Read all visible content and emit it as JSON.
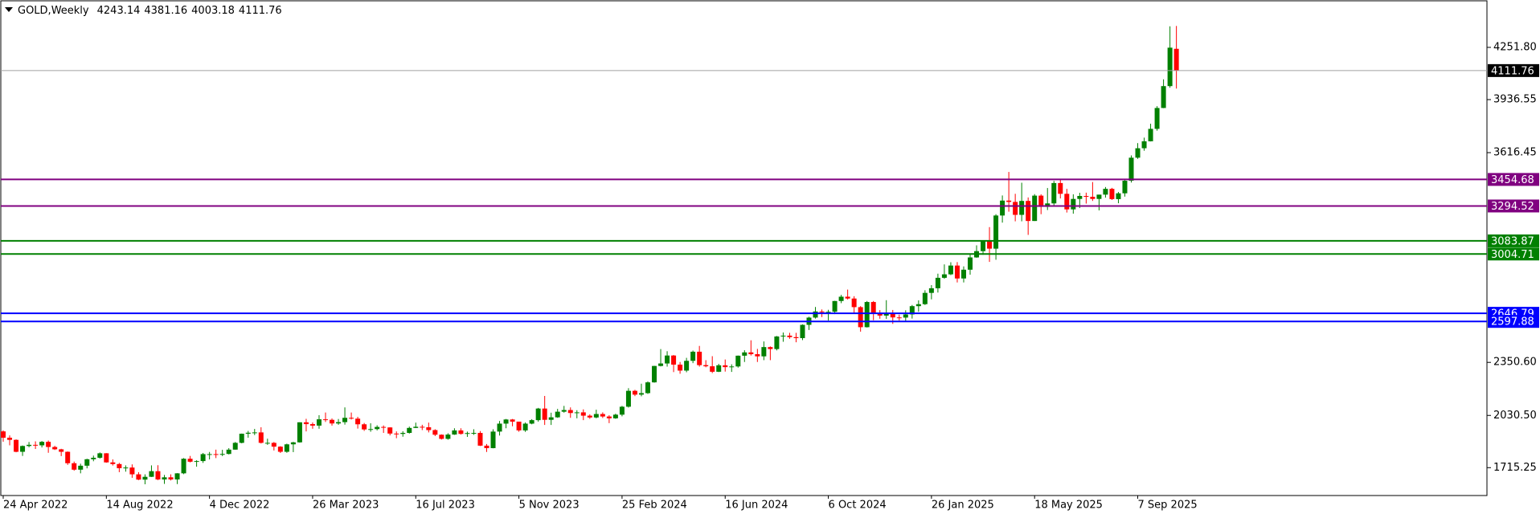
{
  "chart_data": {
    "type": "candlestick",
    "title": "GOLD,Weekly",
    "categories": [
      "24 Apr 2022",
      null,
      null,
      null,
      null,
      null,
      null,
      null,
      null,
      null,
      null,
      null,
      null,
      null,
      null,
      null,
      "14 Aug 2022",
      null,
      null,
      null,
      null,
      null,
      null,
      null,
      null,
      null,
      null,
      null,
      null,
      null,
      null,
      null,
      "4 Dec 2022",
      null,
      null,
      null,
      null,
      null,
      null,
      null,
      null,
      null,
      null,
      null,
      null,
      null,
      null,
      null,
      "26 Mar 2023",
      null,
      null,
      null,
      null,
      null,
      null,
      null,
      null,
      null,
      null,
      null,
      null,
      null,
      null,
      null,
      "16 Jul 2023",
      null,
      null,
      null,
      null,
      null,
      null,
      null,
      null,
      null,
      null,
      null,
      null,
      null,
      null,
      null,
      "5 Nov 2023",
      null,
      null,
      null,
      null,
      null,
      null,
      null,
      null,
      null,
      null,
      null,
      null,
      null,
      null,
      null,
      "25 Feb 2024",
      null,
      null,
      null,
      null,
      null,
      null,
      null,
      null,
      null,
      null,
      null,
      null,
      null,
      null,
      null,
      "16 Jun 2024",
      null,
      null,
      null,
      null,
      null,
      null,
      null,
      null,
      null,
      null,
      null,
      null,
      null,
      null,
      null,
      "6 Oct 2024",
      null,
      null,
      null,
      null,
      null,
      null,
      null,
      null,
      null,
      null,
      null,
      null,
      null,
      null,
      null,
      "26 Jan 2025",
      null,
      null,
      null,
      null,
      null,
      null,
      null,
      null,
      null,
      null,
      null,
      null,
      null,
      null,
      null,
      "18 May 2025",
      null,
      null,
      null,
      null,
      null,
      null,
      null,
      null,
      null,
      null,
      null,
      null,
      null,
      null,
      null,
      "7 Sep 2025",
      null,
      null,
      null,
      null,
      null,
      null
    ],
    "open": [
      1934,
      1896,
      1883,
      1811,
      1846,
      1853,
      1850,
      1871,
      1840,
      1826,
      1811,
      1742,
      1703,
      1727,
      1766,
      1775,
      1802,
      1747,
      1737,
      1712,
      1716,
      1675,
      1643,
      1660,
      1694,
      1644,
      1657,
      1644,
      1681,
      1769,
      1751,
      1755,
      1797,
      1797,
      1793,
      1798,
      1824,
      1865,
      1920,
      1926,
      1928,
      1865,
      1865,
      1842,
      1811,
      1856,
      1868,
      1989,
      1978,
      1969,
      2007,
      2004,
      1982,
      1990,
      2016,
      2011,
      1977,
      1946,
      1948,
      1961,
      1958,
      1921,
      1919,
      1925,
      1955,
      1962,
      1959,
      1942,
      1914,
      1889,
      1915,
      1940,
      1919,
      1924,
      1925,
      1848,
      1833,
      1933,
      1981,
      2006,
      1993,
      1940,
      1981,
      2002,
      2072,
      2004,
      2019,
      2053,
      2063,
      2045,
      2049,
      2029,
      2018,
      2039,
      2024,
      2013,
      2035,
      2083,
      2179,
      2156,
      2165,
      2230,
      2329,
      2344,
      2392,
      2337,
      2301,
      2360,
      2415,
      2334,
      2327,
      2294,
      2333,
      2322,
      2326,
      2391,
      2411,
      2400,
      2387,
      2443,
      2431,
      2507,
      2512,
      2503,
      2497,
      2577,
      2621,
      2658,
      2653,
      2656,
      2721,
      2747,
      2736,
      2684,
      2563,
      2715,
      2643,
      2633,
      2648,
      2622,
      2621,
      2640,
      2690,
      2702,
      2770,
      2798,
      2861,
      2882,
      2935,
      2857,
      2910,
      2984,
      3022,
      3084,
      3037,
      3237,
      3327,
      3319,
      3241,
      3325,
      3204,
      3357,
      3289,
      3310,
      3433,
      3368,
      3274,
      3337,
      3355,
      3350,
      3337,
      3363,
      3398,
      3336,
      3371,
      3447,
      3586,
      3643,
      3685,
      3760,
      3886,
      4018,
      4243.14
    ],
    "high": [
      1940,
      1910,
      1886,
      1849,
      1870,
      1874,
      1876,
      1879,
      1847,
      1829,
      1813,
      1752,
      1739,
      1769,
      1788,
      1807,
      1803,
      1765,
      1744,
      1729,
      1735,
      1688,
      1675,
      1729,
      1730,
      1671,
      1675,
      1682,
      1773,
      1786,
      1760,
      1804,
      1810,
      1824,
      1823,
      1833,
      1870,
      1921,
      1937,
      1949,
      1959,
      1890,
      1870,
      1845,
      1860,
      1871,
      1989,
      2010,
      1988,
      2032,
      2048,
      2012,
      2009,
      2079,
      2048,
      2022,
      1985,
      1983,
      1971,
      1970,
      1959,
      1934,
      1935,
      1963,
      1987,
      1974,
      1987,
      1947,
      1916,
      1923,
      1953,
      1953,
      1933,
      1947,
      1936,
      1858,
      1947,
      1997,
      2009,
      2009,
      1993,
      1988,
      2008,
      2076,
      2148,
      2047,
      2070,
      2088,
      2079,
      2062,
      2067,
      2037,
      2065,
      2049,
      2032,
      2041,
      2088,
      2195,
      2185,
      2222,
      2236,
      2330,
      2431,
      2418,
      2395,
      2353,
      2378,
      2422,
      2450,
      2364,
      2388,
      2342,
      2368,
      2339,
      2392,
      2424,
      2484,
      2432,
      2477,
      2447,
      2510,
      2531,
      2529,
      2529,
      2580,
      2626,
      2685,
      2670,
      2668,
      2722,
      2758,
      2790,
      2750,
      2690,
      2721,
      2721,
      2666,
      2726,
      2667,
      2639,
      2665,
      2697,
      2725,
      2786,
      2817,
      2886,
      2942,
      2955,
      2956,
      2930,
      3005,
      3057,
      3086,
      3167,
      3245,
      3358,
      3500,
      3368,
      3435,
      3346,
      3366,
      3365,
      3403,
      3446,
      3452,
      3398,
      3365,
      3374,
      3375,
      3439,
      3363,
      3409,
      3404,
      3379,
      3453,
      3600,
      3674,
      3707,
      3791,
      3897,
      4059,
      4379,
      4381.16
    ],
    "low": [
      1872,
      1850,
      1808,
      1786,
      1838,
      1828,
      1837,
      1805,
      1822,
      1785,
      1732,
      1697,
      1681,
      1711,
      1754,
      1770,
      1745,
      1728,
      1688,
      1691,
      1654,
      1640,
      1615,
      1659,
      1640,
      1617,
      1638,
      1616,
      1676,
      1747,
      1721,
      1744,
      1765,
      1773,
      1785,
      1795,
      1824,
      1862,
      1896,
      1912,
      1861,
      1853,
      1819,
      1804,
      1805,
      1809,
      1866,
      1934,
      1950,
      1950,
      1991,
      1969,
      1974,
      1975,
      2006,
      1951,
      1937,
      1932,
      1940,
      1925,
      1910,
      1893,
      1902,
      1921,
      1954,
      1942,
      1928,
      1906,
      1885,
      1884,
      1913,
      1915,
      1901,
      1913,
      1846,
      1810,
      1832,
      1909,
      1953,
      1965,
      1932,
      1931,
      1977,
      1993,
      1973,
      1973,
      2016,
      2047,
      2016,
      2013,
      2002,
      2010,
      2013,
      2015,
      1984,
      2010,
      2025,
      2078,
      2147,
      2146,
      2160,
      2228,
      2326,
      2325,
      2292,
      2282,
      2291,
      2346,
      2325,
      2321,
      2286,
      2292,
      2295,
      2293,
      2319,
      2353,
      2392,
      2353,
      2364,
      2364,
      2423,
      2475,
      2493,
      2472,
      2485,
      2546,
      2615,
      2624,
      2603,
      2642,
      2708,
      2730,
      2643,
      2536,
      2561,
      2605,
      2614,
      2613,
      2583,
      2603,
      2597,
      2615,
      2656,
      2697,
      2731,
      2772,
      2855,
      2877,
      2833,
      2833,
      2880,
      2982,
      3000,
      2957,
      2970,
      3194,
      3260,
      3202,
      3202,
      3120,
      3204,
      3245,
      3270,
      3293,
      3340,
      3255,
      3248,
      3282,
      3309,
      3325,
      3268,
      3345,
      3331,
      3311,
      3351,
      3436,
      3579,
      3628,
      3684,
      3749,
      3885,
      4008,
      4003.18
    ],
    "close": [
      1896,
      1883,
      1811,
      1846,
      1853,
      1850,
      1871,
      1840,
      1826,
      1811,
      1742,
      1703,
      1727,
      1766,
      1775,
      1802,
      1747,
      1737,
      1712,
      1716,
      1675,
      1643,
      1660,
      1694,
      1644,
      1657,
      1644,
      1681,
      1769,
      1751,
      1755,
      1797,
      1797,
      1793,
      1798,
      1824,
      1865,
      1920,
      1926,
      1928,
      1865,
      1865,
      1842,
      1811,
      1856,
      1868,
      1989,
      1978,
      1969,
      2007,
      2004,
      1982,
      1990,
      2016,
      2011,
      1977,
      1946,
      1948,
      1961,
      1958,
      1921,
      1919,
      1925,
      1955,
      1962,
      1959,
      1942,
      1914,
      1889,
      1915,
      1940,
      1919,
      1924,
      1925,
      1848,
      1833,
      1933,
      1981,
      2006,
      1993,
      1940,
      1981,
      2002,
      2072,
      2004,
      2019,
      2053,
      2063,
      2045,
      2049,
      2029,
      2018,
      2039,
      2024,
      2013,
      2035,
      2083,
      2179,
      2156,
      2165,
      2230,
      2329,
      2344,
      2392,
      2337,
      2301,
      2360,
      2415,
      2334,
      2327,
      2294,
      2333,
      2322,
      2326,
      2391,
      2411,
      2400,
      2387,
      2443,
      2431,
      2507,
      2512,
      2503,
      2497,
      2577,
      2621,
      2658,
      2653,
      2656,
      2721,
      2747,
      2736,
      2684,
      2563,
      2715,
      2643,
      2633,
      2648,
      2622,
      2621,
      2640,
      2690,
      2702,
      2770,
      2798,
      2861,
      2882,
      2935,
      2857,
      2910,
      2984,
      3022,
      3084,
      3037,
      3237,
      3327,
      3319,
      3241,
      3325,
      3204,
      3357,
      3289,
      3310,
      3433,
      3368,
      3274,
      3337,
      3355,
      3350,
      3337,
      3363,
      3398,
      3336,
      3371,
      3447,
      3586,
      3643,
      3685,
      3760,
      3886,
      4018,
      4250,
      4111.76
    ],
    "colors": {
      "up": "#008000",
      "down": "#ff0000",
      "bid": "#a0a0a0"
    },
    "levels": [
      {
        "value": 3454.68,
        "color": "#800080"
      },
      {
        "value": 3294.52,
        "color": "#800080"
      },
      {
        "value": 3083.87,
        "color": "#008000"
      },
      {
        "value": 3004.71,
        "color": "#008000"
      },
      {
        "value": 2646.79,
        "color": "#0000ff"
      },
      {
        "value": 2597.88,
        "color": "#0000ff"
      }
    ],
    "ylim": [
      1547,
      4528
    ],
    "yticks": [
      {
        "value": 4251.8,
        "label": "4251.80"
      },
      3936.55,
      3616.45,
      {
        "value": 2350.6,
        "label": "2350.60"
      },
      {
        "value": 2030.5,
        "label": "2030.50"
      },
      1715.25
    ],
    "grid": false
  }
}
